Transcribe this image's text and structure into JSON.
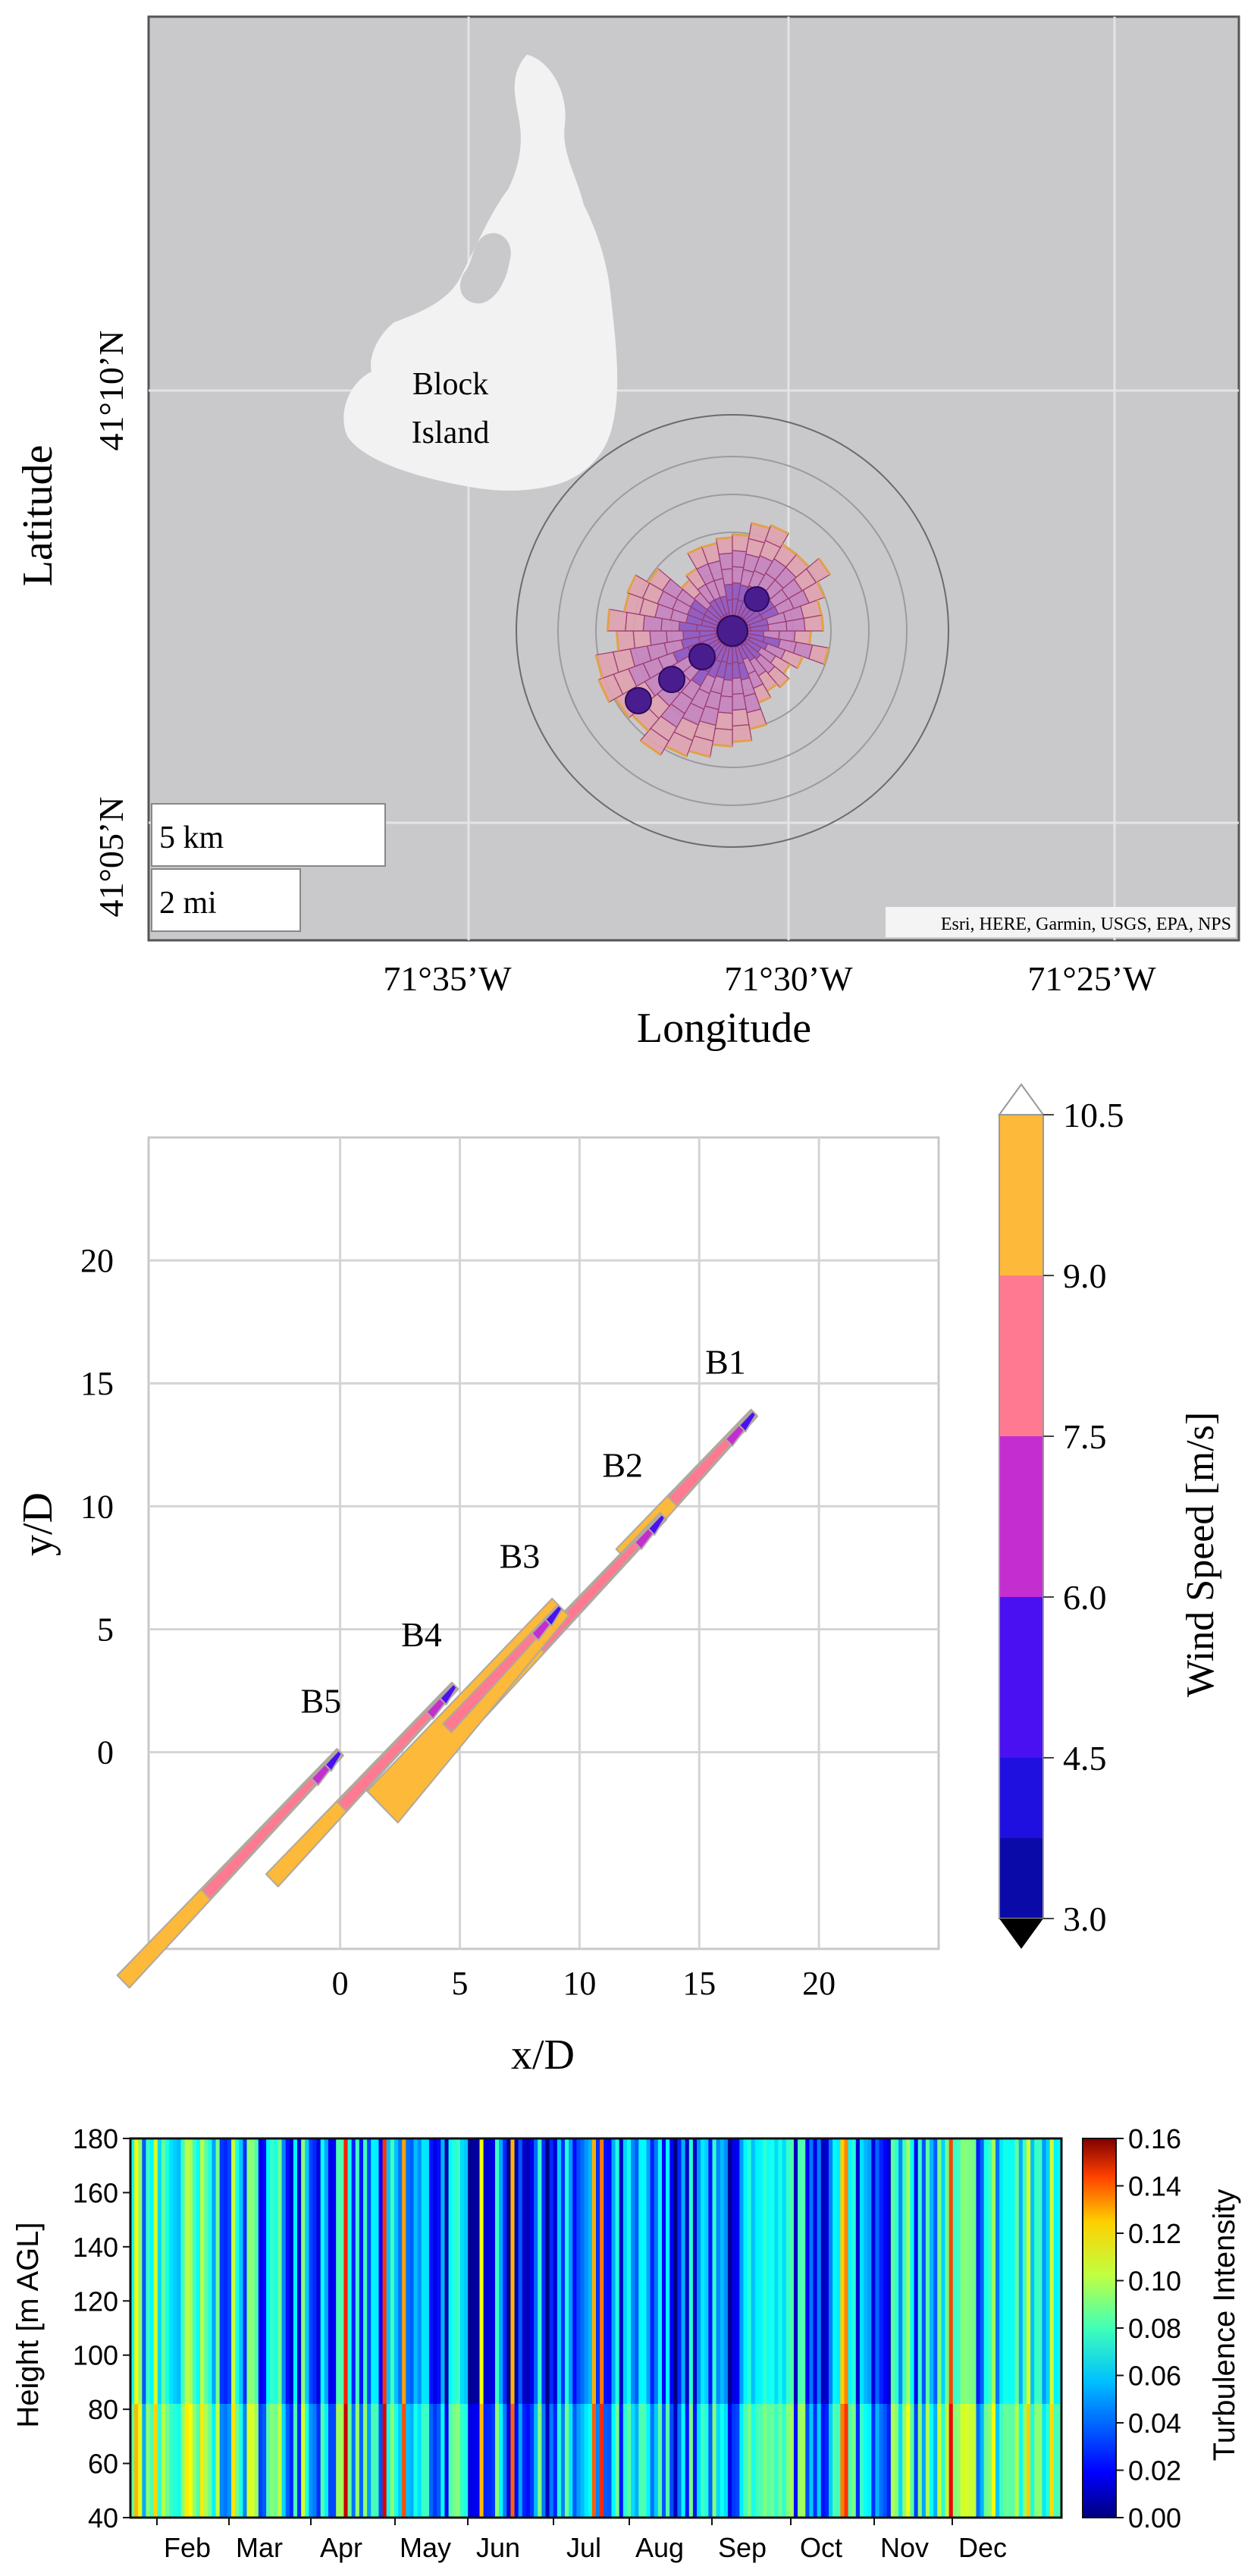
{
  "chart_data": [
    {
      "type": "map",
      "xlabel": "Longitude",
      "ylabel": "Latitude",
      "x_ticks": [
        "71°35’W",
        "71°30’W",
        "71°25’W"
      ],
      "y_ticks": [
        "41°10’N",
        "41°05’N"
      ],
      "island_label": [
        "Block",
        "Island"
      ],
      "scale_bars": [
        "5 km",
        "2 mi"
      ],
      "attribution": "Esri, HERE, Garmin, USGS, EPA, NPS",
      "colors": {
        "water": "#c9c9cc",
        "land": "#f1f1f1",
        "rose_fill": "#d98fb3",
        "rose_edge": "#e2a14a",
        "turbine": "#4a1d8f"
      },
      "turbines": 5
    },
    {
      "type": "contour",
      "xlabel": "x/D",
      "ylabel": "y/D",
      "x_ticks": [
        0,
        5,
        10,
        15,
        20
      ],
      "y_ticks": [
        0,
        5,
        10,
        15,
        20
      ],
      "xlim": [
        -8,
        25
      ],
      "ylim": [
        -8,
        25
      ],
      "turbines": [
        {
          "name": "B1",
          "x": 17.3,
          "y": 13.8
        },
        {
          "name": "B2",
          "x": 13.5,
          "y": 9.6
        },
        {
          "name": "B3",
          "x": 9.2,
          "y": 5.9
        },
        {
          "name": "B4",
          "x": 4.8,
          "y": 2.7
        },
        {
          "name": "B5",
          "x": 0.0,
          "y": 0.0
        }
      ],
      "colorbar": {
        "label": "Wind Speed [m/s]",
        "ticks": [
          "10.5",
          "9.0",
          "7.5",
          "6.0",
          "4.5",
          "3.0"
        ],
        "colors": [
          "#fcb93a",
          "#ff7a90",
          "#c42ed1",
          "#4a10f2",
          "#1a1ad0",
          "#0a0ab0"
        ]
      }
    },
    {
      "type": "heatmap",
      "ylabel": "Height [m AGL]",
      "y_ticks": [
        180,
        160,
        140,
        120,
        100,
        80,
        60,
        40
      ],
      "x_ticks": [
        "Feb",
        "Mar",
        "Apr",
        "May",
        "Jun",
        "Jul",
        "Aug",
        "Sep",
        "Oct",
        "Nov",
        "Dec"
      ],
      "colorbar": {
        "label": "Turbulence Intensity",
        "ticks": [
          "0.16",
          "0.14",
          "0.12",
          "0.10",
          "0.08",
          "0.06",
          "0.04",
          "0.02",
          "0.00"
        ],
        "range": [
          0,
          0.16
        ]
      }
    }
  ]
}
